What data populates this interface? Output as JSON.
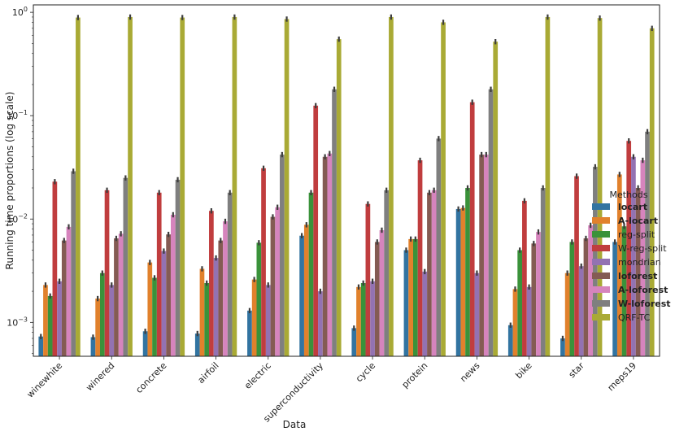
{
  "chart_data": {
    "type": "bar",
    "scale": "log",
    "xlabel": "Data",
    "ylabel": "Running time proportions (log scale)",
    "ylim": [
      0.00047,
      1.18
    ],
    "yticks": [
      {
        "value": 0.001,
        "base": "10",
        "exp": "−3"
      },
      {
        "value": 0.01,
        "base": "10",
        "exp": "−2"
      },
      {
        "value": 0.1,
        "base": "10",
        "exp": "−1"
      },
      {
        "value": 1,
        "base": "10",
        "exp": "0"
      }
    ],
    "categories": [
      "winewhite",
      "winered",
      "concrete",
      "airfoil",
      "electric",
      "superconductivity",
      "cycle",
      "protein",
      "news",
      "bike",
      "star",
      "meps19"
    ],
    "legend": {
      "title": "Methods",
      "position": "right"
    },
    "series": [
      {
        "name": "locart",
        "bold": true,
        "color": "#3274a1",
        "values": [
          0.00073,
          0.00072,
          0.00082,
          0.00078,
          0.0013,
          0.0069,
          0.00088,
          0.005,
          0.0125,
          0.00094,
          0.0007,
          0.006
        ]
      },
      {
        "name": "A-locart",
        "bold": true,
        "color": "#e1812c",
        "values": [
          0.0023,
          0.0017,
          0.0038,
          0.0033,
          0.0026,
          0.0088,
          0.0022,
          0.0064,
          0.0128,
          0.0021,
          0.003,
          0.027
        ]
      },
      {
        "name": "reg-split",
        "bold": false,
        "color": "#3a923a",
        "values": [
          0.0018,
          0.003,
          0.0027,
          0.0024,
          0.0059,
          0.018,
          0.0024,
          0.0064,
          0.02,
          0.005,
          0.006,
          0.0085
        ]
      },
      {
        "name": "W-reg-split",
        "bold": false,
        "color": "#c03d3e",
        "values": [
          0.023,
          0.019,
          0.018,
          0.012,
          0.031,
          0.125,
          0.014,
          0.037,
          0.135,
          0.015,
          0.026,
          0.057
        ]
      },
      {
        "name": "mondrian",
        "bold": false,
        "color": "#9372b2",
        "values": [
          0.0025,
          0.0023,
          0.0049,
          0.0042,
          0.0023,
          0.002,
          0.0025,
          0.0031,
          0.003,
          0.0022,
          0.0035,
          0.04
        ]
      },
      {
        "name": "loforest",
        "bold": true,
        "color": "#845b53",
        "values": [
          0.0062,
          0.0065,
          0.0071,
          0.0062,
          0.0105,
          0.04,
          0.006,
          0.018,
          0.042,
          0.0058,
          0.0065,
          0.02
        ]
      },
      {
        "name": "A-loforest",
        "bold": true,
        "color": "#d684bd",
        "values": [
          0.0084,
          0.0072,
          0.011,
          0.0095,
          0.013,
          0.043,
          0.0078,
          0.019,
          0.042,
          0.0075,
          0.0087,
          0.037
        ]
      },
      {
        "name": "W-loforest",
        "bold": true,
        "color": "#7f7f7f",
        "values": [
          0.029,
          0.025,
          0.024,
          0.018,
          0.042,
          0.18,
          0.019,
          0.06,
          0.18,
          0.02,
          0.032,
          0.07
        ]
      },
      {
        "name": "QRF-TC",
        "bold": false,
        "color": "#a9aa35",
        "values": [
          0.89,
          0.9,
          0.89,
          0.9,
          0.86,
          0.55,
          0.9,
          0.8,
          0.52,
          0.9,
          0.88,
          0.7
        ]
      }
    ]
  }
}
